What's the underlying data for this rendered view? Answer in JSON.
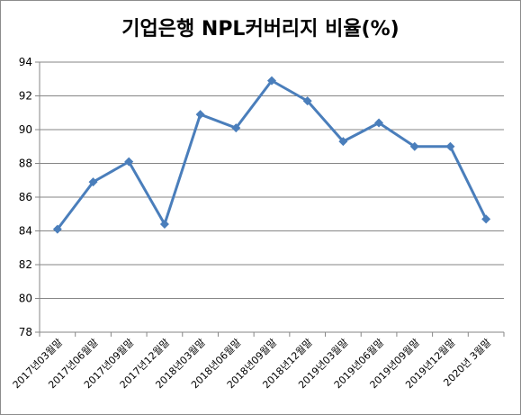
{
  "chart_data": {
    "type": "line",
    "title": "기업은행 NPL커버리지 비율(%)",
    "categories": [
      "2017년03월말",
      "2017년06월말",
      "2017년09월말",
      "2017년12월말",
      "2018년03월말",
      "2018년06월말",
      "2018년09월말",
      "2018년12월말",
      "2019년03월말",
      "2019년06월말",
      "2019년09월말",
      "2019년12월말",
      "2020년 3월말"
    ],
    "series": [
      {
        "values": [
          84.1,
          86.9,
          88.1,
          84.4,
          90.9,
          90.1,
          92.9,
          91.7,
          89.3,
          90.4,
          89.0,
          89.0,
          84.7
        ]
      }
    ],
    "ylim": [
      78,
      94
    ],
    "yticks": [
      78,
      80,
      82,
      84,
      86,
      88,
      90,
      92,
      94
    ],
    "grid": true,
    "legend": "none",
    "line_color": "#4a7ebb"
  }
}
